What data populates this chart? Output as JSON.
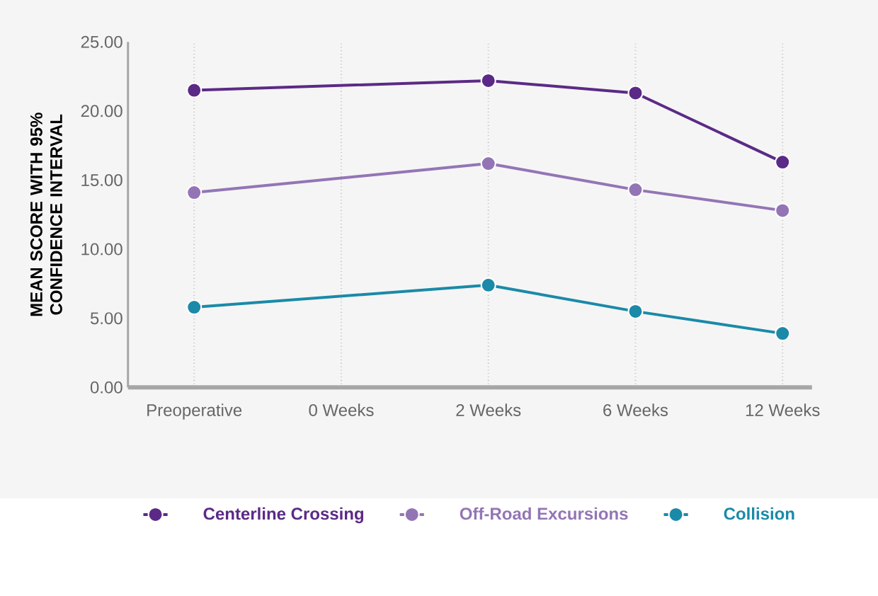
{
  "chart_data": {
    "type": "line",
    "ylabel": "MEAN SCORE WITH 95% CONFIDENCE INTERVAL",
    "categories": [
      "Preoperative",
      "0 Weeks",
      "2 Weeks",
      "6 Weeks",
      "12 Weeks"
    ],
    "series": [
      {
        "name": "Centerline Crossing",
        "color": "#5b2a86",
        "values": [
          21.5,
          null,
          22.2,
          21.3,
          16.3
        ]
      },
      {
        "name": "Off-Road Excursions",
        "color": "#9375b5",
        "values": [
          14.1,
          null,
          16.2,
          14.3,
          12.8
        ]
      },
      {
        "name": "Collision",
        "color": "#1a8aa8",
        "values": [
          5.8,
          null,
          7.4,
          5.5,
          3.9
        ]
      }
    ],
    "ylim": [
      0,
      25
    ],
    "yticks": [
      {
        "value": 0,
        "label": "0.00"
      },
      {
        "value": 5,
        "label": "5.00"
      },
      {
        "value": 10,
        "label": "10.00"
      },
      {
        "value": 15,
        "label": "15.00"
      },
      {
        "value": 20,
        "label": "20.00"
      },
      {
        "value": 25,
        "label": "25.00"
      }
    ],
    "grid": "x",
    "legend": "bottom",
    "marker": "circle",
    "line_style": "solid"
  }
}
